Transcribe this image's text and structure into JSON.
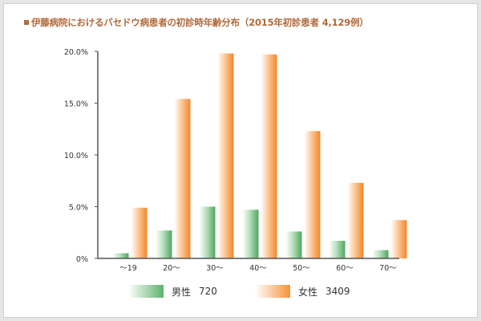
{
  "title": "伊藤病院におけるバセドウ病患者の初診時年齢分布（2015年初診患者 4,129例）",
  "chart_data": {
    "type": "bar",
    "categories": [
      "～19",
      "20～",
      "30～",
      "40～",
      "50～",
      "60～",
      "70～"
    ],
    "series": [
      {
        "name": "男性",
        "count": "720",
        "values": [
          0.5,
          2.7,
          5.0,
          4.7,
          2.6,
          1.7,
          0.8
        ],
        "color": "#5db26a"
      },
      {
        "name": "女性",
        "count": "3409",
        "values": [
          4.9,
          15.4,
          19.8,
          19.7,
          12.3,
          7.3,
          3.7
        ],
        "color": "#f7923a"
      }
    ],
    "yticks": [
      "0%",
      "5.0%",
      "10.0%",
      "15.0%",
      "20.0%"
    ],
    "ylim": [
      0,
      20
    ],
    "grid": false,
    "legend": "bottom"
  }
}
